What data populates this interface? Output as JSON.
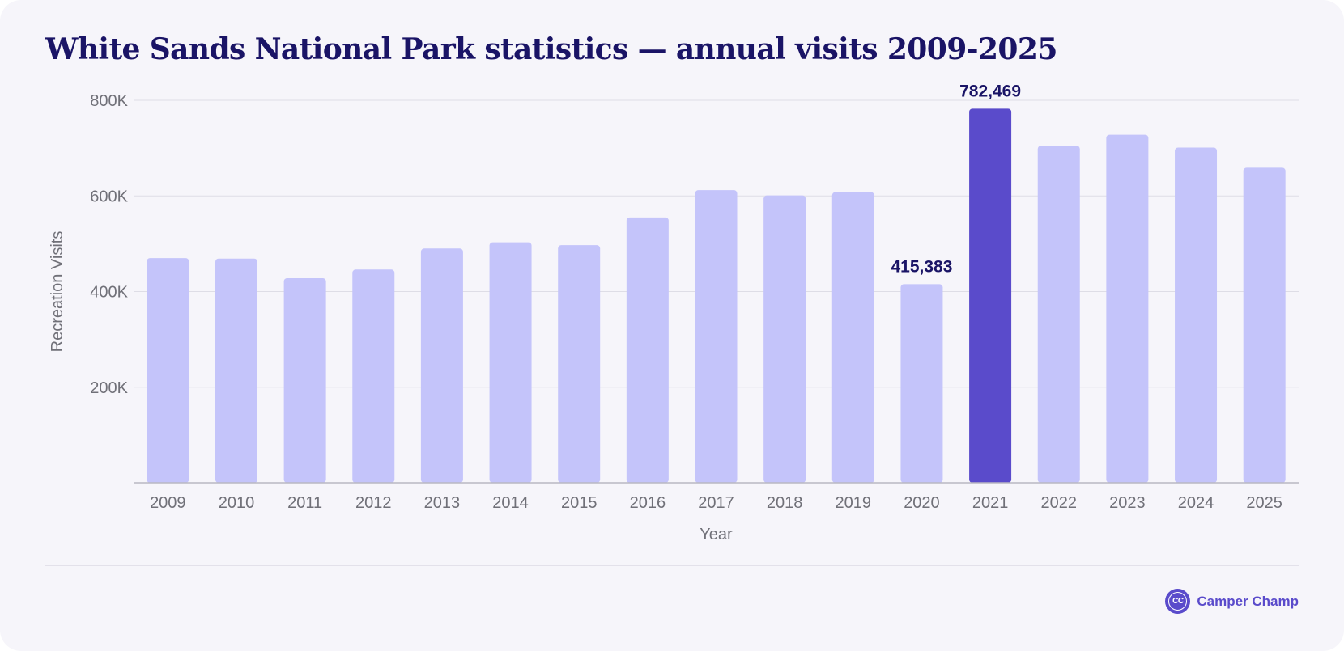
{
  "chart_data": {
    "type": "bar",
    "title": "White Sands National Park statistics — annual visits 2009-2025",
    "xlabel": "Year",
    "ylabel": "Recreation Visits",
    "categories": [
      "2009",
      "2010",
      "2011",
      "2012",
      "2013",
      "2014",
      "2015",
      "2016",
      "2017",
      "2018",
      "2019",
      "2020",
      "2021",
      "2022",
      "2023",
      "2024",
      "2025"
    ],
    "values": [
      470000,
      469000,
      428000,
      446000,
      490000,
      503000,
      497000,
      555000,
      612000,
      601000,
      608000,
      415383,
      782469,
      705000,
      728000,
      701000,
      659000
    ],
    "ylim": [
      0,
      800000
    ],
    "yticks": [
      200000,
      400000,
      600000,
      800000
    ],
    "ytick_labels": [
      "200K",
      "400K",
      "600K",
      "800K"
    ],
    "grid": true,
    "legend": "none",
    "highlight": {
      "category": "2021",
      "color": "#5a4bcb"
    },
    "annotations": [
      {
        "category": "2020",
        "text": "415,383"
      },
      {
        "category": "2021",
        "text": "782,469"
      }
    ],
    "colors": {
      "bar": "#c4c4fa",
      "label": "#1a1466",
      "axis_text": "#707078",
      "grid": "#dedde6",
      "baseline": "#b9b8c2"
    }
  },
  "brand": {
    "logo_text": "CC",
    "name": "Camper Champ"
  }
}
